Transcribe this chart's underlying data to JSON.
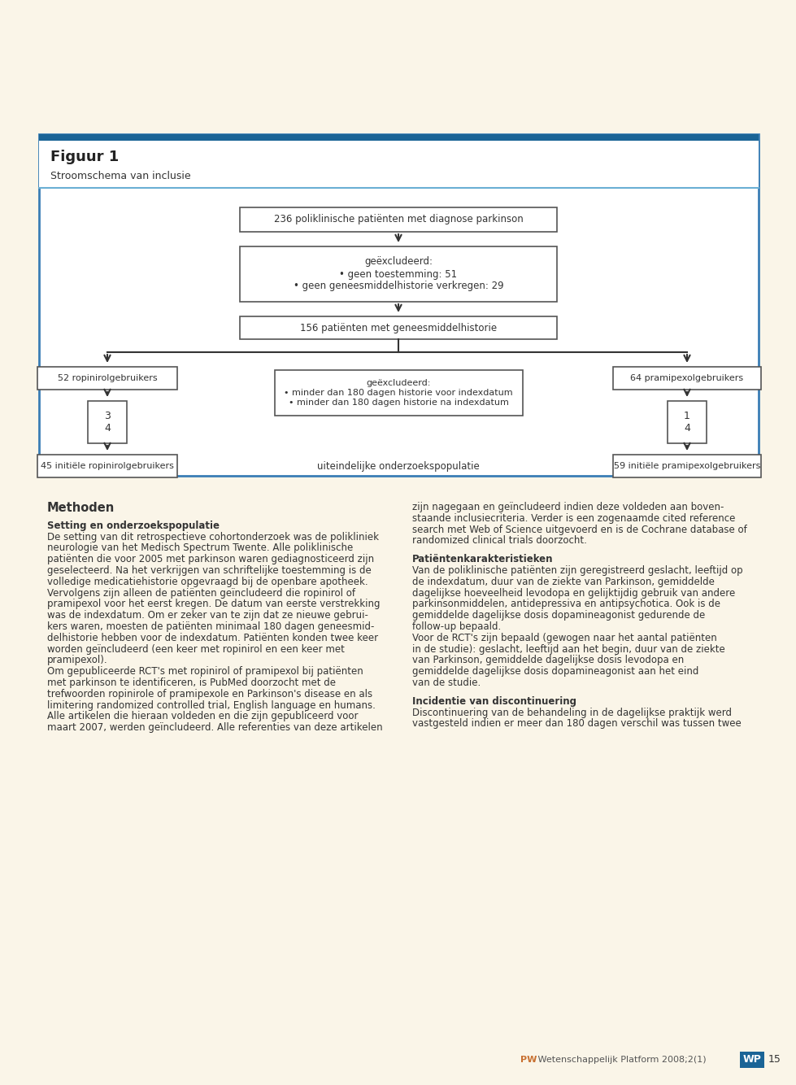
{
  "page_bg": "#faf5e8",
  "box_bg": "#ffffff",
  "box_edge": "#555555",
  "box_edge_width": 1.2,
  "frame_border_color": "#3a7db5",
  "frame_top_bar_color": "#1a6496",
  "frame_header_sep_color": "#6aafd4",
  "figuur_title": "Figuur 1",
  "figuur_subtitle": "Stroomschema van inclusie",
  "arrow_color": "#333333",
  "text_color": "#333333",
  "footer_pw_color": "#c87030",
  "footer_wp_color": "#1a6496",
  "footer_text": "PW Wetenschappelijk Platform 2008;2(1)",
  "footer_page": "15"
}
